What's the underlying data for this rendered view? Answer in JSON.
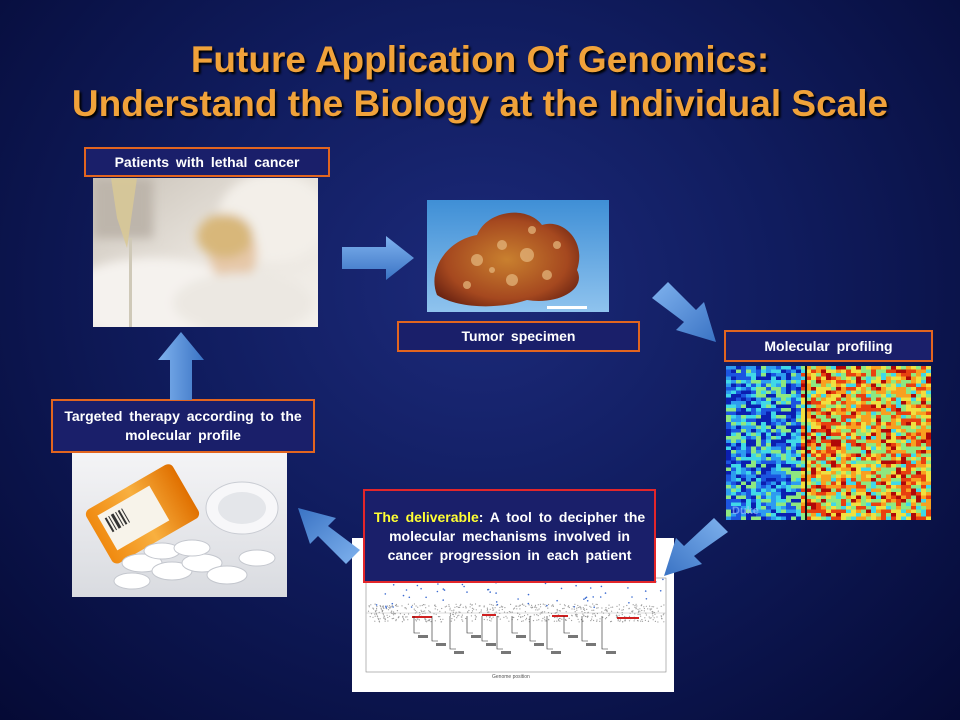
{
  "title": {
    "line1": "Future Application Of Genomics:",
    "line2": "Understand the Biology at the Individual Scale"
  },
  "steps": {
    "patients": "Patients with lethal cancer",
    "tumor": "Tumor specimen",
    "molecular": "Molecular profiling",
    "deliverable_highlight": "The deliverable",
    "deliverable_text": ": A tool to decipher the molecular mechanisms involved in cancer progression in each patient",
    "therapy": "Targeted therapy according to the molecular profile"
  },
  "images": {
    "heatmap_watermark": "Duke",
    "genome_xlabel": "Genome position"
  },
  "colors": {
    "title": "#f0a23a",
    "box_border": "#e2651f",
    "deliverable_border": "#e3262a",
    "highlight": "#ffff33",
    "arrow": "#4f8fd8"
  }
}
